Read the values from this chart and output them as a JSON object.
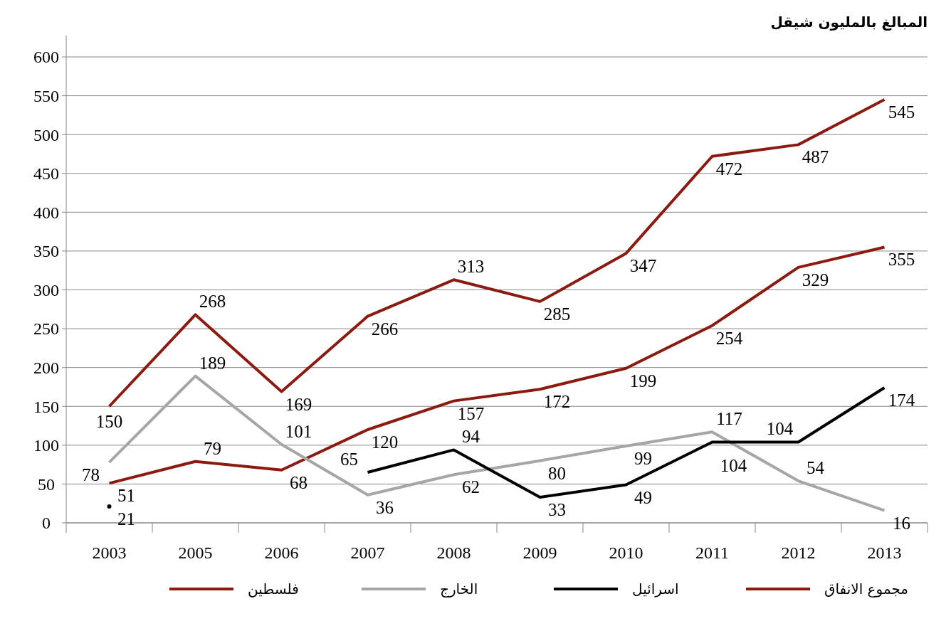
{
  "chart_data": {
    "type": "line",
    "ylabel": "المبالغ بالمليون شيقل",
    "categories": [
      "2003",
      "2005",
      "2006",
      "2007",
      "2008",
      "2009",
      "2010",
      "2011",
      "2012",
      "2013"
    ],
    "series": [
      {
        "name": "فلسطين",
        "color": "#8b1a10",
        "values": [
          51,
          79,
          68,
          120,
          157,
          172,
          199,
          254,
          329,
          355
        ]
      },
      {
        "name": "الخارج",
        "color": "#a6a6a6",
        "values": [
          78,
          189,
          101,
          36,
          62,
          80,
          99,
          117,
          54,
          16
        ]
      },
      {
        "name": "اسرائيل",
        "color": "#000000",
        "values": [
          21,
          null,
          null,
          65,
          94,
          33,
          49,
          104,
          104,
          174
        ]
      },
      {
        "name": "مجموع الانفاق",
        "color": "#8b1a10",
        "values": [
          150,
          268,
          169,
          266,
          313,
          285,
          347,
          472,
          487,
          545
        ]
      }
    ],
    "ylim": [
      0,
      600
    ],
    "yticks": [
      0,
      50,
      100,
      150,
      200,
      250,
      300,
      350,
      400,
      450,
      500,
      550,
      600
    ],
    "grid": "y",
    "legend": "bottom",
    "data_labels": true,
    "marker": "none",
    "line_style": "solid"
  }
}
